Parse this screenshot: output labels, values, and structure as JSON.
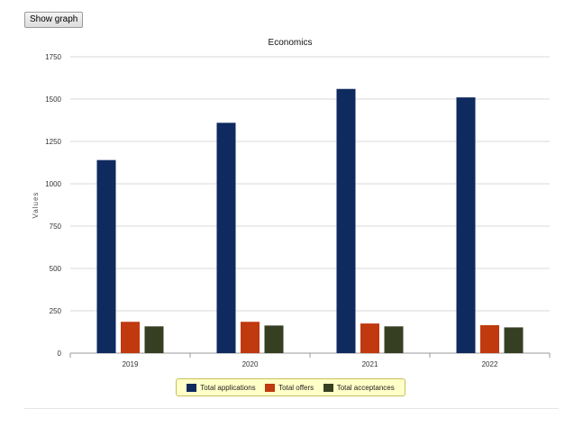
{
  "toolbar": {
    "show_graph_label": "Show graph"
  },
  "chart_data": {
    "type": "bar",
    "title": "Economics",
    "xlabel": "",
    "ylabel": "Values",
    "categories": [
      "2019",
      "2020",
      "2021",
      "2022"
    ],
    "ylim": [
      0,
      1750
    ],
    "yticks": [
      0,
      250,
      500,
      750,
      1000,
      1250,
      1500,
      1750
    ],
    "ytick_labels": [
      "0",
      "250",
      "500",
      "750",
      "1000",
      "1250",
      "1500",
      "1750"
    ],
    "grid": true,
    "legend_position": "bottom",
    "series": [
      {
        "name": "Total applications",
        "color": "#0f2a5e",
        "values": [
          1140,
          1360,
          1560,
          1510
        ]
      },
      {
        "name": "Total offers",
        "color": "#c0390f",
        "values": [
          185,
          185,
          175,
          165
        ]
      },
      {
        "name": "Total acceptances",
        "color": "#363f22",
        "values": [
          158,
          163,
          158,
          152
        ]
      }
    ]
  }
}
